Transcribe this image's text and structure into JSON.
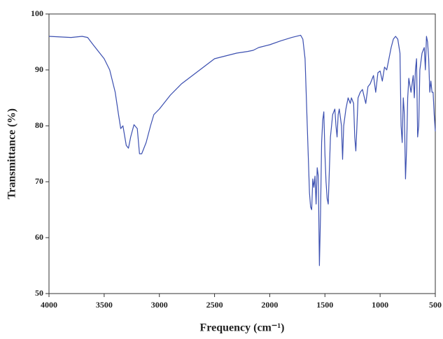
{
  "chart_data": {
    "type": "line",
    "xlabel": "Frequency (cm⁻¹)",
    "ylabel": "Transmittance (%)",
    "xlim": [
      4000,
      500
    ],
    "ylim": [
      50,
      100
    ],
    "xticks": [
      4000,
      3500,
      3000,
      2500,
      2000,
      1500,
      1000,
      500
    ],
    "yticks": [
      50,
      60,
      70,
      80,
      90,
      100
    ],
    "color": "#3b4fb0",
    "x": [
      4000,
      3800,
      3700,
      3650,
      3600,
      3500,
      3450,
      3400,
      3370,
      3350,
      3330,
      3300,
      3280,
      3260,
      3230,
      3200,
      3180,
      3160,
      3120,
      3080,
      3050,
      3000,
      2900,
      2800,
      2700,
      2600,
      2500,
      2400,
      2300,
      2200,
      2150,
      2100,
      2000,
      1900,
      1800,
      1720,
      1700,
      1680,
      1660,
      1640,
      1630,
      1620,
      1610,
      1600,
      1590,
      1580,
      1570,
      1560,
      1550,
      1540,
      1530,
      1520,
      1510,
      1500,
      1490,
      1480,
      1470,
      1460,
      1450,
      1430,
      1410,
      1400,
      1390,
      1380,
      1370,
      1350,
      1340,
      1330,
      1310,
      1290,
      1270,
      1260,
      1240,
      1230,
      1220,
      1210,
      1200,
      1180,
      1160,
      1130,
      1110,
      1090,
      1060,
      1040,
      1020,
      1000,
      980,
      960,
      940,
      920,
      900,
      880,
      860,
      840,
      820,
      810,
      800,
      790,
      780,
      770,
      760,
      750,
      740,
      720,
      700,
      690,
      680,
      670,
      660,
      650,
      640,
      620,
      600,
      590,
      580,
      570,
      560,
      550,
      540,
      530,
      520,
      510,
      500
    ],
    "values": [
      96,
      95.8,
      96,
      95.8,
      94.5,
      92,
      90,
      86,
      82,
      79.5,
      80,
      76.5,
      76,
      78,
      80.2,
      79.5,
      75,
      75,
      77,
      80,
      82,
      83,
      85.5,
      87.5,
      89,
      90.5,
      92,
      92.5,
      93,
      93.3,
      93.5,
      94,
      94.5,
      95.2,
      95.8,
      96.2,
      95.5,
      92,
      80,
      68,
      65.5,
      65,
      70.5,
      69,
      71,
      66,
      72.5,
      71,
      55,
      64,
      77,
      81,
      82.5,
      75,
      70,
      67,
      66,
      72,
      78,
      82,
      83,
      80,
      78,
      82,
      83,
      80,
      74,
      80,
      83,
      85,
      84,
      85,
      84,
      78,
      75.5,
      80,
      85,
      86,
      86.5,
      84,
      87,
      87.5,
      89,
      86,
      89.5,
      89.8,
      88,
      90.5,
      90,
      92,
      94,
      95.5,
      96,
      95.5,
      93,
      80,
      77,
      85,
      82,
      70.5,
      76,
      85,
      88.5,
      86,
      89,
      85,
      90,
      92,
      78,
      80,
      90,
      93,
      94,
      90,
      96,
      95,
      92,
      86,
      88,
      86,
      86,
      82,
      79
    ]
  }
}
